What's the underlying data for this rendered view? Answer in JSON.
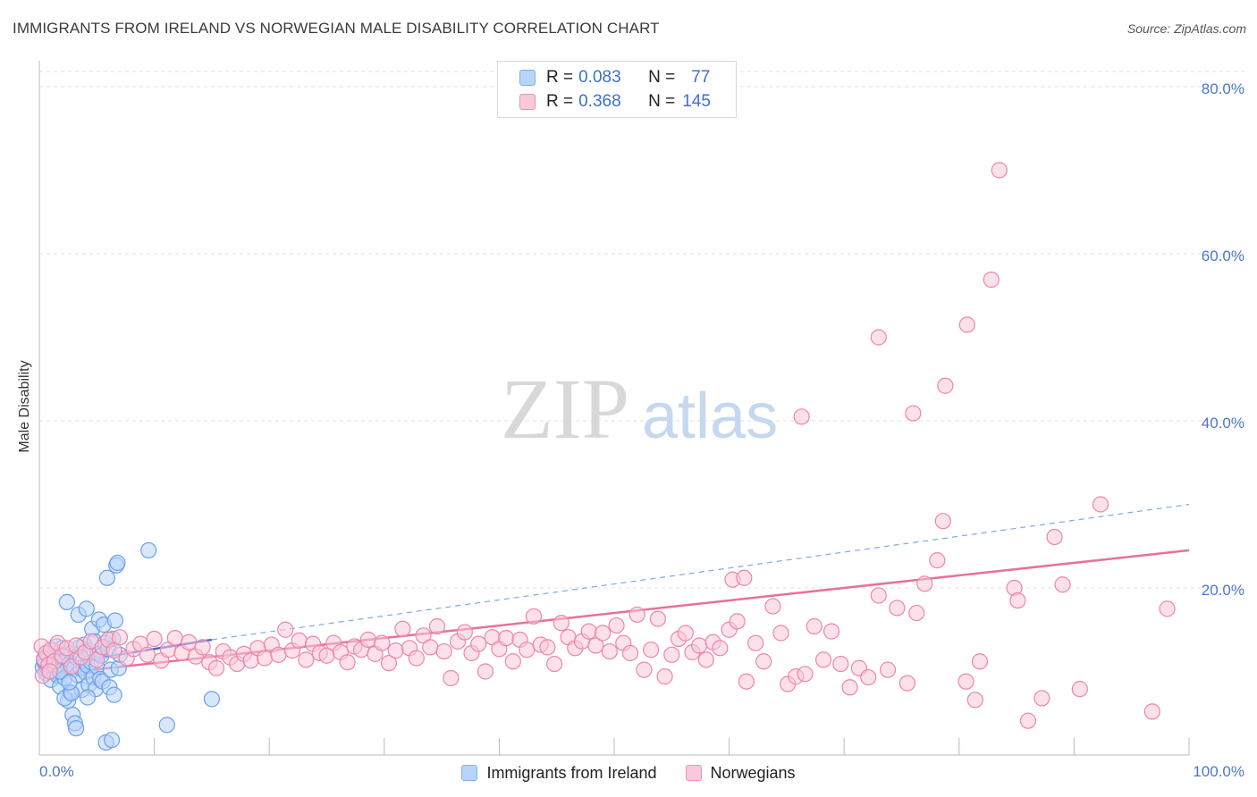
{
  "header": {
    "title": "IMMIGRANTS FROM IRELAND VS NORWEGIAN MALE DISABILITY CORRELATION CHART",
    "source": "Source: ZipAtlas.com"
  },
  "watermark": {
    "zip": "ZIP",
    "atlas": "atlas"
  },
  "legend": {
    "rows": [
      {
        "r_label": "R =",
        "r_value": "0.083",
        "n_label": "N =",
        "n_value": "77",
        "color": "#7fb0f0",
        "fill": "#b8d4f8"
      },
      {
        "r_label": "R =",
        "r_value": "0.368",
        "n_label": "N =",
        "n_value": "145",
        "color": "#f090b0",
        "fill": "#f9c9da"
      }
    ]
  },
  "bottom_legend": {
    "items": [
      {
        "label": "Immigrants from Ireland",
        "color": "#7fb0f0",
        "fill": "#b8d4f8"
      },
      {
        "label": "Norwegians",
        "color": "#f090b0",
        "fill": "#f9c9da"
      }
    ]
  },
  "chart_data": {
    "type": "scatter",
    "title": "IMMIGRANTS FROM IRELAND VS NORWEGIAN MALE DISABILITY CORRELATION CHART",
    "xlabel": "",
    "ylabel": "Male Disability",
    "xlim": [
      0,
      100
    ],
    "ylim": [
      0,
      85
    ],
    "x_tick_labels": [
      "0.0%",
      "100.0%"
    ],
    "y_ticks": [
      20,
      40,
      60,
      80
    ],
    "y_tick_labels": [
      "20.0%",
      "40.0%",
      "60.0%",
      "80.0%"
    ],
    "grid": true,
    "series": [
      {
        "name": "Immigrants from Ireland",
        "color": "#6aa0ee",
        "fill": "#b8d4f8",
        "trend": {
          "x": [
            0,
            15
          ],
          "y": [
            10.5,
            13.8
          ],
          "color": "#3b6fd1",
          "extend_to": [
            100,
            30
          ]
        },
        "points": [
          [
            0.3,
            10.5
          ],
          [
            0.5,
            11
          ],
          [
            0.6,
            9.8
          ],
          [
            0.7,
            12
          ],
          [
            0.8,
            10.2
          ],
          [
            0.9,
            11.5
          ],
          [
            1.0,
            9
          ],
          [
            1.1,
            10.8
          ],
          [
            1.2,
            12.5
          ],
          [
            1.3,
            10
          ],
          [
            1.4,
            11.2
          ],
          [
            1.5,
            13
          ],
          [
            1.6,
            9.5
          ],
          [
            1.7,
            10.6
          ],
          [
            1.8,
            8.2
          ],
          [
            1.9,
            11.8
          ],
          [
            2.0,
            12.8
          ],
          [
            2.1,
            10.1
          ],
          [
            2.2,
            9.2
          ],
          [
            2.3,
            11.4
          ],
          [
            2.4,
            18.3
          ],
          [
            2.5,
            6.5
          ],
          [
            2.6,
            10.9
          ],
          [
            2.7,
            7.5
          ],
          [
            2.8,
            12.2
          ],
          [
            2.9,
            4.8
          ],
          [
            3.0,
            10.3
          ],
          [
            3.1,
            3.8
          ],
          [
            3.2,
            11.7
          ],
          [
            3.3,
            9.6
          ],
          [
            3.4,
            16.8
          ],
          [
            3.5,
            12.9
          ],
          [
            3.6,
            10.4
          ],
          [
            3.7,
            7.8
          ],
          [
            3.8,
            11.3
          ],
          [
            3.9,
            13.2
          ],
          [
            4.0,
            9.9
          ],
          [
            4.1,
            17.5
          ],
          [
            4.2,
            10.7
          ],
          [
            4.3,
            8.4
          ],
          [
            4.4,
            12.4
          ],
          [
            4.5,
            11.1
          ],
          [
            4.6,
            15.1
          ],
          [
            4.7,
            9.3
          ],
          [
            4.8,
            13.6
          ],
          [
            4.9,
            7.9
          ],
          [
            5.0,
            10.6
          ],
          [
            5.1,
            12.1
          ],
          [
            5.2,
            16.2
          ],
          [
            5.3,
            9.1
          ],
          [
            5.4,
            11.9
          ],
          [
            5.5,
            8.8
          ],
          [
            5.6,
            15.6
          ],
          [
            5.7,
            13.4
          ],
          [
            5.8,
            1.5
          ],
          [
            5.9,
            21.2
          ],
          [
            6.0,
            12.7
          ],
          [
            6.1,
            8.1
          ],
          [
            6.2,
            10.2
          ],
          [
            6.3,
            1.8
          ],
          [
            6.4,
            13.9
          ],
          [
            6.5,
            7.2
          ],
          [
            6.6,
            16.1
          ],
          [
            6.7,
            22.7
          ],
          [
            6.8,
            23.0
          ],
          [
            6.9,
            10.4
          ],
          [
            7.0,
            12.0
          ],
          [
            2.2,
            6.8
          ],
          [
            3.2,
            3.2
          ],
          [
            2.8,
            7.4
          ],
          [
            1.8,
            10.0
          ],
          [
            9.5,
            24.5
          ],
          [
            11.1,
            3.6
          ],
          [
            15.0,
            6.7
          ],
          [
            0.4,
            11.3
          ],
          [
            4.2,
            6.9
          ],
          [
            2.6,
            8.7
          ]
        ]
      },
      {
        "name": "Norwegians",
        "color": "#ee85a8",
        "fill": "#f9c9da",
        "trend": {
          "x": [
            0,
            100
          ],
          "y": [
            9.5,
            24.5
          ],
          "color": "#e8709a"
        },
        "points": [
          [
            0.2,
            13
          ],
          [
            0.4,
            11.5
          ],
          [
            0.6,
            12.2
          ],
          [
            0.8,
            10.8
          ],
          [
            1.0,
            12.6
          ],
          [
            1.3,
            11.2
          ],
          [
            1.6,
            13.4
          ],
          [
            2.0,
            11.9
          ],
          [
            2.4,
            12.8
          ],
          [
            2.8,
            10.6
          ],
          [
            3.2,
            13.1
          ],
          [
            3.6,
            11.7
          ],
          [
            4.0,
            12.3
          ],
          [
            4.5,
            13.6
          ],
          [
            5.0,
            11.4
          ],
          [
            5.5,
            12.9
          ],
          [
            6.0,
            13.8
          ],
          [
            6.5,
            12.5
          ],
          [
            7.0,
            14.1
          ],
          [
            7.6,
            11.6
          ],
          [
            8.2,
            12.7
          ],
          [
            8.8,
            13.3
          ],
          [
            9.4,
            12.0
          ],
          [
            10.0,
            13.9
          ],
          [
            10.6,
            11.3
          ],
          [
            11.2,
            12.6
          ],
          [
            11.8,
            14.0
          ],
          [
            12.4,
            12.2
          ],
          [
            13.0,
            13.5
          ],
          [
            13.6,
            11.8
          ],
          [
            14.2,
            12.9
          ],
          [
            14.8,
            11.1
          ],
          [
            15.4,
            10.4
          ],
          [
            16.0,
            12.4
          ],
          [
            16.6,
            11.7
          ],
          [
            17.2,
            10.9
          ],
          [
            17.8,
            12.1
          ],
          [
            18.4,
            11.3
          ],
          [
            19.0,
            12.8
          ],
          [
            19.6,
            11.6
          ],
          [
            20.2,
            13.2
          ],
          [
            20.8,
            12.0
          ],
          [
            21.4,
            15.0
          ],
          [
            22.0,
            12.5
          ],
          [
            22.6,
            13.7
          ],
          [
            23.2,
            11.4
          ],
          [
            23.8,
            13.3
          ],
          [
            24.4,
            12.2
          ],
          [
            25.0,
            11.9
          ],
          [
            25.6,
            13.4
          ],
          [
            26.2,
            12.3
          ],
          [
            26.8,
            11.1
          ],
          [
            27.4,
            13.0
          ],
          [
            28.0,
            12.6
          ],
          [
            28.6,
            13.8
          ],
          [
            29.2,
            12.1
          ],
          [
            29.8,
            13.4
          ],
          [
            30.4,
            11.0
          ],
          [
            31.0,
            12.5
          ],
          [
            31.6,
            15.1
          ],
          [
            32.2,
            12.8
          ],
          [
            32.8,
            11.6
          ],
          [
            33.4,
            14.3
          ],
          [
            34.0,
            12.9
          ],
          [
            34.6,
            15.4
          ],
          [
            35.2,
            12.4
          ],
          [
            35.8,
            9.2
          ],
          [
            36.4,
            13.6
          ],
          [
            37.0,
            14.7
          ],
          [
            37.6,
            12.2
          ],
          [
            38.2,
            13.3
          ],
          [
            38.8,
            10.0
          ],
          [
            39.4,
            14.1
          ],
          [
            40.0,
            12.7
          ],
          [
            40.6,
            14.0
          ],
          [
            41.2,
            11.2
          ],
          [
            41.8,
            13.8
          ],
          [
            42.4,
            12.6
          ],
          [
            43.0,
            16.6
          ],
          [
            43.6,
            13.2
          ],
          [
            44.2,
            12.9
          ],
          [
            44.8,
            10.9
          ],
          [
            45.4,
            15.8
          ],
          [
            46.0,
            14.1
          ],
          [
            46.6,
            12.8
          ],
          [
            47.2,
            13.6
          ],
          [
            47.8,
            14.8
          ],
          [
            48.4,
            13.1
          ],
          [
            49.0,
            14.6
          ],
          [
            49.6,
            12.4
          ],
          [
            50.2,
            15.5
          ],
          [
            50.8,
            13.4
          ],
          [
            51.4,
            12.2
          ],
          [
            52.0,
            16.8
          ],
          [
            52.6,
            10.2
          ],
          [
            53.2,
            12.6
          ],
          [
            53.8,
            16.3
          ],
          [
            54.4,
            9.4
          ],
          [
            55.0,
            12.0
          ],
          [
            55.6,
            13.9
          ],
          [
            56.2,
            14.6
          ],
          [
            56.8,
            12.3
          ],
          [
            57.4,
            13.1
          ],
          [
            58.0,
            11.4
          ],
          [
            58.6,
            13.5
          ],
          [
            59.2,
            12.8
          ],
          [
            60.0,
            15.0
          ],
          [
            60.7,
            16.0
          ],
          [
            61.5,
            8.8
          ],
          [
            62.3,
            13.4
          ],
          [
            63.0,
            11.2
          ],
          [
            63.8,
            17.8
          ],
          [
            64.5,
            14.6
          ],
          [
            65.1,
            8.5
          ],
          [
            65.8,
            9.4
          ],
          [
            66.6,
            9.7
          ],
          [
            67.4,
            15.4
          ],
          [
            68.2,
            11.4
          ],
          [
            68.9,
            14.8
          ],
          [
            69.7,
            10.9
          ],
          [
            70.5,
            8.1
          ],
          [
            71.3,
            10.4
          ],
          [
            72.1,
            9.3
          ],
          [
            73.0,
            19.1
          ],
          [
            73.8,
            10.2
          ],
          [
            74.6,
            17.6
          ],
          [
            75.5,
            8.6
          ],
          [
            76.3,
            17.0
          ],
          [
            77.0,
            20.5
          ],
          [
            78.1,
            23.3
          ],
          [
            78.6,
            28.0
          ],
          [
            80.6,
            8.8
          ],
          [
            81.4,
            6.6
          ],
          [
            81.8,
            11.2
          ],
          [
            84.8,
            20.0
          ],
          [
            85.1,
            18.5
          ],
          [
            86.0,
            4.1
          ],
          [
            87.2,
            6.8
          ],
          [
            88.3,
            26.1
          ],
          [
            89.0,
            20.4
          ],
          [
            90.5,
            7.9
          ],
          [
            92.3,
            30.0
          ],
          [
            96.8,
            5.2
          ],
          [
            98.1,
            17.5
          ],
          [
            60.3,
            21.0
          ],
          [
            61.3,
            21.2
          ],
          [
            66.3,
            40.5
          ],
          [
            73.0,
            50.0
          ],
          [
            76.0,
            40.9
          ],
          [
            78.8,
            44.2
          ],
          [
            80.7,
            51.5
          ],
          [
            82.8,
            56.9
          ],
          [
            83.5,
            70.0
          ],
          [
            0.3,
            9.5
          ],
          [
            0.9,
            10.0
          ]
        ]
      }
    ]
  }
}
